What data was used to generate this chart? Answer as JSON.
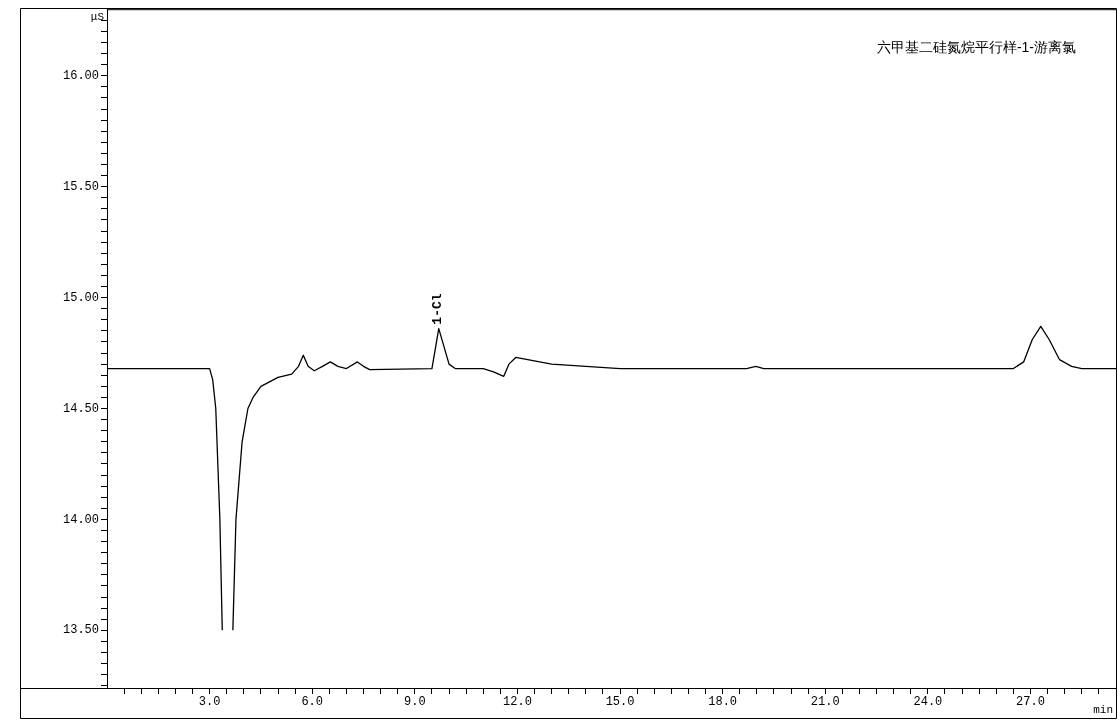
{
  "chart_data": {
    "type": "line",
    "title": "六甲基二硅氮烷平行样-1-游离氯",
    "xlabel": "min",
    "ylabel": "μS",
    "x": [
      0,
      2.7,
      3.0,
      3.09,
      3.18,
      3.3,
      3.37,
      3.4,
      3.52,
      3.66,
      3.68,
      3.77,
      3.95,
      4.12,
      4.27,
      4.5,
      5.0,
      5.4,
      5.6,
      5.74,
      5.88,
      6.06,
      6.3,
      6.53,
      6.75,
      7.0,
      7.32,
      7.5,
      7.68,
      9.5,
      9.6,
      9.7,
      9.85,
      10.0,
      10.18,
      11.0,
      11.3,
      11.6,
      11.75,
      11.95,
      12.3,
      13.0,
      14.0,
      15.0,
      18.7,
      18.97,
      19.2,
      26.5,
      26.8,
      27.05,
      27.3,
      27.55,
      27.85,
      28.2,
      28.5,
      29.5
    ],
    "series": [
      {
        "color": "#000000",
        "values": [
          14.68,
          14.68,
          14.68,
          14.63,
          14.5,
          14.0,
          13.5,
          null,
          null,
          null,
          13.5,
          14.0,
          14.35,
          14.5,
          14.55,
          14.6,
          14.64,
          14.655,
          14.69,
          14.74,
          14.69,
          14.67,
          14.69,
          14.71,
          14.69,
          14.68,
          14.71,
          14.69,
          14.675,
          14.68,
          14.77,
          14.86,
          14.78,
          14.7,
          14.68,
          14.68,
          14.665,
          14.645,
          14.7,
          14.73,
          14.72,
          14.7,
          14.69,
          14.68,
          14.68,
          14.69,
          14.68,
          14.68,
          14.71,
          14.81,
          14.87,
          14.81,
          14.72,
          14.69,
          14.68,
          14.68
        ]
      }
    ],
    "xlim": [
      0,
      29.5
    ],
    "xticks": [
      {
        "value": 0.5,
        "label": null
      },
      {
        "value": 1,
        "label": null
      },
      {
        "value": 1.5,
        "label": null
      },
      {
        "value": 2,
        "label": null
      },
      {
        "value": 2.5,
        "label": null
      },
      {
        "value": 3,
        "label": "3.0"
      },
      {
        "value": 3.5,
        "label": null
      },
      {
        "value": 4,
        "label": null
      },
      {
        "value": 4.5,
        "label": null
      },
      {
        "value": 5,
        "label": null
      },
      {
        "value": 5.5,
        "label": null
      },
      {
        "value": 6,
        "label": "6.0"
      },
      {
        "value": 6.5,
        "label": null
      },
      {
        "value": 7,
        "label": null
      },
      {
        "value": 7.5,
        "label": null
      },
      {
        "value": 8,
        "label": null
      },
      {
        "value": 8.5,
        "label": null
      },
      {
        "value": 9,
        "label": "9.0"
      },
      {
        "value": 9.5,
        "label": null
      },
      {
        "value": 10,
        "label": null
      },
      {
        "value": 10.5,
        "label": null
      },
      {
        "value": 11,
        "label": null
      },
      {
        "value": 11.5,
        "label": null
      },
      {
        "value": 12,
        "label": "12.0"
      },
      {
        "value": 12.5,
        "label": null
      },
      {
        "value": 13,
        "label": null
      },
      {
        "value": 13.5,
        "label": null
      },
      {
        "value": 14,
        "label": null
      },
      {
        "value": 14.5,
        "label": null
      },
      {
        "value": 15,
        "label": "15.0"
      },
      {
        "value": 15.5,
        "label": null
      },
      {
        "value": 16,
        "label": null
      },
      {
        "value": 16.5,
        "label": null
      },
      {
        "value": 17,
        "label": null
      },
      {
        "value": 17.5,
        "label": null
      },
      {
        "value": 18,
        "label": "18.0"
      },
      {
        "value": 18.5,
        "label": null
      },
      {
        "value": 19,
        "label": null
      },
      {
        "value": 19.5,
        "label": null
      },
      {
        "value": 20,
        "label": null
      },
      {
        "value": 20.5,
        "label": null
      },
      {
        "value": 21,
        "label": "21.0"
      },
      {
        "value": 21.5,
        "label": null
      },
      {
        "value": 22,
        "label": null
      },
      {
        "value": 22.5,
        "label": null
      },
      {
        "value": 23,
        "label": null
      },
      {
        "value": 23.5,
        "label": null
      },
      {
        "value": 24,
        "label": "24.0"
      },
      {
        "value": 24.5,
        "label": null
      },
      {
        "value": 25,
        "label": null
      },
      {
        "value": 25.5,
        "label": null
      },
      {
        "value": 26,
        "label": null
      },
      {
        "value": 26.5,
        "label": null
      },
      {
        "value": 27,
        "label": "27.0"
      },
      {
        "value": 27.5,
        "label": null
      },
      {
        "value": 28,
        "label": null
      },
      {
        "value": 28.5,
        "label": null
      },
      {
        "value": 29,
        "label": null
      }
    ],
    "ylim": [
      13.24,
      16.3
    ],
    "yticks": [
      {
        "value": 13.25,
        "label": null
      },
      {
        "value": 13.3,
        "label": null
      },
      {
        "value": 13.35,
        "label": null
      },
      {
        "value": 13.4,
        "label": null
      },
      {
        "value": 13.45,
        "label": null
      },
      {
        "value": 13.5,
        "label": "13.50"
      },
      {
        "value": 13.55,
        "label": null
      },
      {
        "value": 13.6,
        "label": null
      },
      {
        "value": 13.65,
        "label": null
      },
      {
        "value": 13.7,
        "label": null
      },
      {
        "value": 13.75,
        "label": null
      },
      {
        "value": 13.8,
        "label": null
      },
      {
        "value": 13.85,
        "label": null
      },
      {
        "value": 13.9,
        "label": null
      },
      {
        "value": 13.95,
        "label": null
      },
      {
        "value": 14,
        "label": "14.00"
      },
      {
        "value": 14.05,
        "label": null
      },
      {
        "value": 14.1,
        "label": null
      },
      {
        "value": 14.15,
        "label": null
      },
      {
        "value": 14.2,
        "label": null
      },
      {
        "value": 14.25,
        "label": null
      },
      {
        "value": 14.3,
        "label": null
      },
      {
        "value": 14.35,
        "label": null
      },
      {
        "value": 14.4,
        "label": null
      },
      {
        "value": 14.45,
        "label": null
      },
      {
        "value": 14.5,
        "label": "14.50"
      },
      {
        "value": 14.55,
        "label": null
      },
      {
        "value": 14.6,
        "label": null
      },
      {
        "value": 14.65,
        "label": null
      },
      {
        "value": 14.7,
        "label": null
      },
      {
        "value": 14.75,
        "label": null
      },
      {
        "value": 14.8,
        "label": null
      },
      {
        "value": 14.85,
        "label": null
      },
      {
        "value": 14.9,
        "label": null
      },
      {
        "value": 14.95,
        "label": null
      },
      {
        "value": 15,
        "label": "15.00"
      },
      {
        "value": 15.05,
        "label": null
      },
      {
        "value": 15.1,
        "label": null
      },
      {
        "value": 15.15,
        "label": null
      },
      {
        "value": 15.2,
        "label": null
      },
      {
        "value": 15.25,
        "label": null
      },
      {
        "value": 15.3,
        "label": null
      },
      {
        "value": 15.35,
        "label": null
      },
      {
        "value": 15.4,
        "label": null
      },
      {
        "value": 15.45,
        "label": null
      },
      {
        "value": 15.5,
        "label": "15.50"
      },
      {
        "value": 15.55,
        "label": null
      },
      {
        "value": 15.6,
        "label": null
      },
      {
        "value": 15.65,
        "label": null
      },
      {
        "value": 15.7,
        "label": null
      },
      {
        "value": 15.75,
        "label": null
      },
      {
        "value": 15.8,
        "label": null
      },
      {
        "value": 15.85,
        "label": null
      },
      {
        "value": 15.9,
        "label": null
      },
      {
        "value": 15.95,
        "label": null
      },
      {
        "value": 16,
        "label": "16.00"
      },
      {
        "value": 16.05,
        "label": null
      },
      {
        "value": 16.1,
        "label": null
      },
      {
        "value": 16.15,
        "label": null
      },
      {
        "value": 16.2,
        "label": null
      },
      {
        "value": 16.25,
        "label": null
      }
    ],
    "annotations": [
      {
        "text": "1-Cl",
        "x": 9.7,
        "y": 14.86
      }
    ],
    "grid": false,
    "legend": false,
    "marker": "none",
    "line_style": "solid"
  }
}
